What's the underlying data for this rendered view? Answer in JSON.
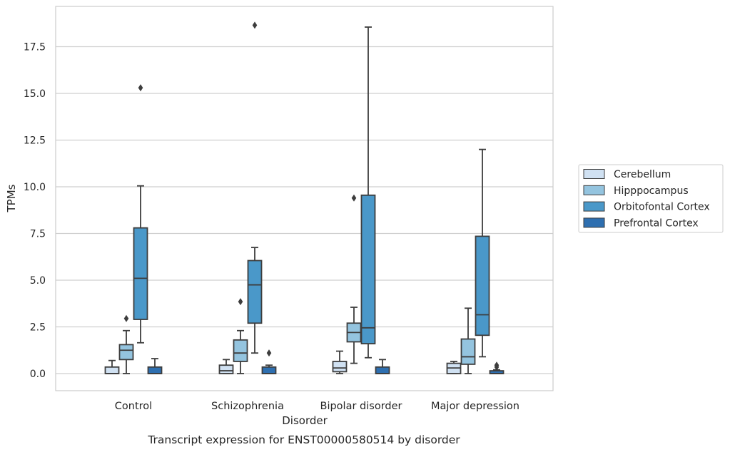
{
  "chart_data": {
    "type": "boxplot",
    "title": "",
    "caption": "Transcript expression for ENST00000580514 by disorder",
    "xlabel": "Disorder",
    "ylabel": "TPMs",
    "ylim": [
      -0.9,
      19.6
    ],
    "yticks": [
      0.0,
      2.5,
      5.0,
      7.5,
      10.0,
      12.5,
      15.0,
      17.5
    ],
    "ytick_labels": [
      "0.0",
      "2.5",
      "5.0",
      "7.5",
      "10.0",
      "12.5",
      "15.0",
      "17.5"
    ],
    "grid": "horizontal",
    "legend_position": "right",
    "categories": [
      "Control",
      "Schizophrenia",
      "Bipolar disorder",
      "Major depression"
    ],
    "series": [
      {
        "name": "Cerebellum",
        "color": "#d0e1f2",
        "boxes": [
          {
            "whislo": 0.0,
            "q1": 0.0,
            "med": 0.0,
            "q3": 0.35,
            "whishi": 0.7,
            "fliers": []
          },
          {
            "whislo": 0.0,
            "q1": 0.0,
            "med": 0.15,
            "q3": 0.45,
            "whishi": 0.75,
            "fliers": []
          },
          {
            "whislo": 0.0,
            "q1": 0.1,
            "med": 0.3,
            "q3": 0.65,
            "whishi": 1.2,
            "fliers": []
          },
          {
            "whislo": 0.0,
            "q1": 0.0,
            "med": 0.3,
            "q3": 0.55,
            "whishi": 0.65,
            "fliers": []
          }
        ]
      },
      {
        "name": "Hipppocampus",
        "color": "#94c4df",
        "boxes": [
          {
            "whislo": 0.0,
            "q1": 0.75,
            "med": 1.25,
            "q3": 1.55,
            "whishi": 2.3,
            "fliers": [
              2.95
            ]
          },
          {
            "whislo": 0.0,
            "q1": 0.65,
            "med": 1.1,
            "q3": 1.8,
            "whishi": 2.3,
            "fliers": [
              3.85
            ]
          },
          {
            "whislo": 0.55,
            "q1": 1.7,
            "med": 2.2,
            "q3": 2.7,
            "whishi": 3.55,
            "fliers": [
              9.4
            ]
          },
          {
            "whislo": 0.0,
            "q1": 0.5,
            "med": 0.9,
            "q3": 1.85,
            "whishi": 3.5,
            "fliers": []
          }
        ]
      },
      {
        "name": "Orbitofontal Cortex",
        "color": "#4a98c9",
        "boxes": [
          {
            "whislo": 1.65,
            "q1": 2.9,
            "med": 5.1,
            "q3": 7.8,
            "whishi": 10.05,
            "fliers": [
              15.3
            ]
          },
          {
            "whislo": 1.1,
            "q1": 2.7,
            "med": 4.75,
            "q3": 6.05,
            "whishi": 6.75,
            "fliers": [
              18.65
            ]
          },
          {
            "whislo": 0.85,
            "q1": 1.6,
            "med": 2.45,
            "q3": 9.55,
            "whishi": 18.55,
            "fliers": []
          },
          {
            "whislo": 0.9,
            "q1": 2.05,
            "med": 3.15,
            "q3": 7.35,
            "whishi": 12.0,
            "fliers": []
          }
        ]
      },
      {
        "name": "Prefrontal Cortex",
        "color": "#2e6fb0",
        "boxes": [
          {
            "whislo": 0.0,
            "q1": 0.0,
            "med": 0.0,
            "q3": 0.35,
            "whishi": 0.8,
            "fliers": []
          },
          {
            "whislo": 0.0,
            "q1": 0.0,
            "med": 0.0,
            "q3": 0.35,
            "whishi": 0.45,
            "fliers": [
              1.1
            ]
          },
          {
            "whislo": 0.0,
            "q1": 0.0,
            "med": 0.0,
            "q3": 0.35,
            "whishi": 0.75,
            "fliers": []
          },
          {
            "whislo": 0.0,
            "q1": 0.0,
            "med": 0.0,
            "q3": 0.15,
            "whishi": 0.2,
            "fliers": [
              0.45,
              0.35
            ]
          }
        ]
      }
    ]
  }
}
